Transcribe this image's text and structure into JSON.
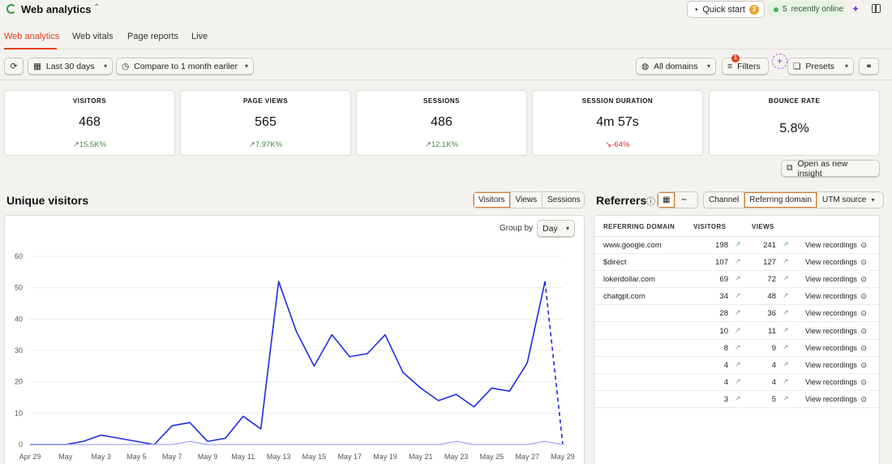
{
  "app": {
    "title": "Web analytics"
  },
  "header": {
    "quick_start_label": "Quick start",
    "quick_start_badge": "3",
    "online_count": "5",
    "online_label": "recently online"
  },
  "tabs": [
    "Web analytics",
    "Web vitals",
    "Page reports",
    "Live"
  ],
  "filters": {
    "date_range": "Last 30 days",
    "compare": "Compare to 1 month earlier",
    "domains": "All domains",
    "filters_label": "Filters",
    "filters_count": "1",
    "presets": "Presets"
  },
  "stats": [
    {
      "label": "VISITORS",
      "value": "468",
      "delta": "15.5K%",
      "trend": "up"
    },
    {
      "label": "PAGE VIEWS",
      "value": "565",
      "delta": "7.97K%",
      "trend": "up"
    },
    {
      "label": "SESSIONS",
      "value": "486",
      "delta": "12.1K%",
      "trend": "up"
    },
    {
      "label": "SESSION DURATION",
      "value": "4m 57s",
      "delta": "-64%",
      "trend": "down"
    },
    {
      "label": "BOUNCE RATE",
      "value": "5.8%",
      "delta": "",
      "trend": ""
    }
  ],
  "insight_button": "Open as new insight",
  "visitors_section": {
    "title": "Unique visitors",
    "metric_tabs": [
      "Visitors",
      "Views",
      "Sessions"
    ],
    "active_metric": "Visitors",
    "group_by_label": "Group by",
    "group_by_value": "Day"
  },
  "chart_data": {
    "type": "line",
    "ylim": [
      0,
      60
    ],
    "yticks": [
      0,
      10,
      20,
      30,
      40,
      50,
      60
    ],
    "x_tick_labels": [
      "Apr 29",
      "May",
      "May 3",
      "May 5",
      "May 7",
      "May 9",
      "May 11",
      "May 13",
      "May 15",
      "May 17",
      "May 19",
      "May 21",
      "May 23",
      "May 25",
      "May 27",
      "May 29"
    ],
    "series": [
      {
        "color": "#1f2be0",
        "values": [
          0,
          0,
          0,
          1,
          3,
          2,
          1,
          0,
          6,
          7,
          1,
          2,
          9,
          5,
          52,
          36,
          25,
          35,
          28,
          29,
          35,
          23,
          18,
          14,
          16,
          12,
          18,
          17,
          26,
          52,
          0
        ],
        "dashed_from_index": 29
      },
      {
        "color": "#a7a9f2",
        "values": [
          0,
          0,
          0,
          0,
          0,
          0,
          0,
          0,
          0,
          1,
          0,
          0,
          0,
          0,
          0,
          0,
          0,
          0,
          0,
          0,
          0,
          0,
          0,
          0,
          1,
          0,
          0,
          0,
          0,
          1,
          0
        ]
      }
    ]
  },
  "referrers": {
    "title": "Referrers",
    "tabs": [
      "Channel",
      "Referring domain",
      "UTM source"
    ],
    "active_tab": "Referring domain",
    "columns": [
      "REFERRING DOMAIN",
      "VISITORS",
      "VIEWS"
    ],
    "view_recordings_label": "View recordings",
    "rows": [
      {
        "domain": "www.google.com",
        "visitors": "198",
        "views": "241"
      },
      {
        "domain": "$direct",
        "visitors": "107",
        "views": "127"
      },
      {
        "domain": "lokerdollar.com",
        "visitors": "69",
        "views": "72"
      },
      {
        "domain": "chatgpt.com",
        "visitors": "34",
        "views": "48"
      },
      {
        "domain": "",
        "visitors": "28",
        "views": "36"
      },
      {
        "domain": "",
        "visitors": "10",
        "views": "11"
      },
      {
        "domain": "",
        "visitors": "8",
        "views": "9"
      },
      {
        "domain": "",
        "visitors": "4",
        "views": "4"
      },
      {
        "domain": "",
        "visitors": "4",
        "views": "4"
      },
      {
        "domain": "",
        "visitors": "3",
        "views": "5"
      }
    ]
  }
}
